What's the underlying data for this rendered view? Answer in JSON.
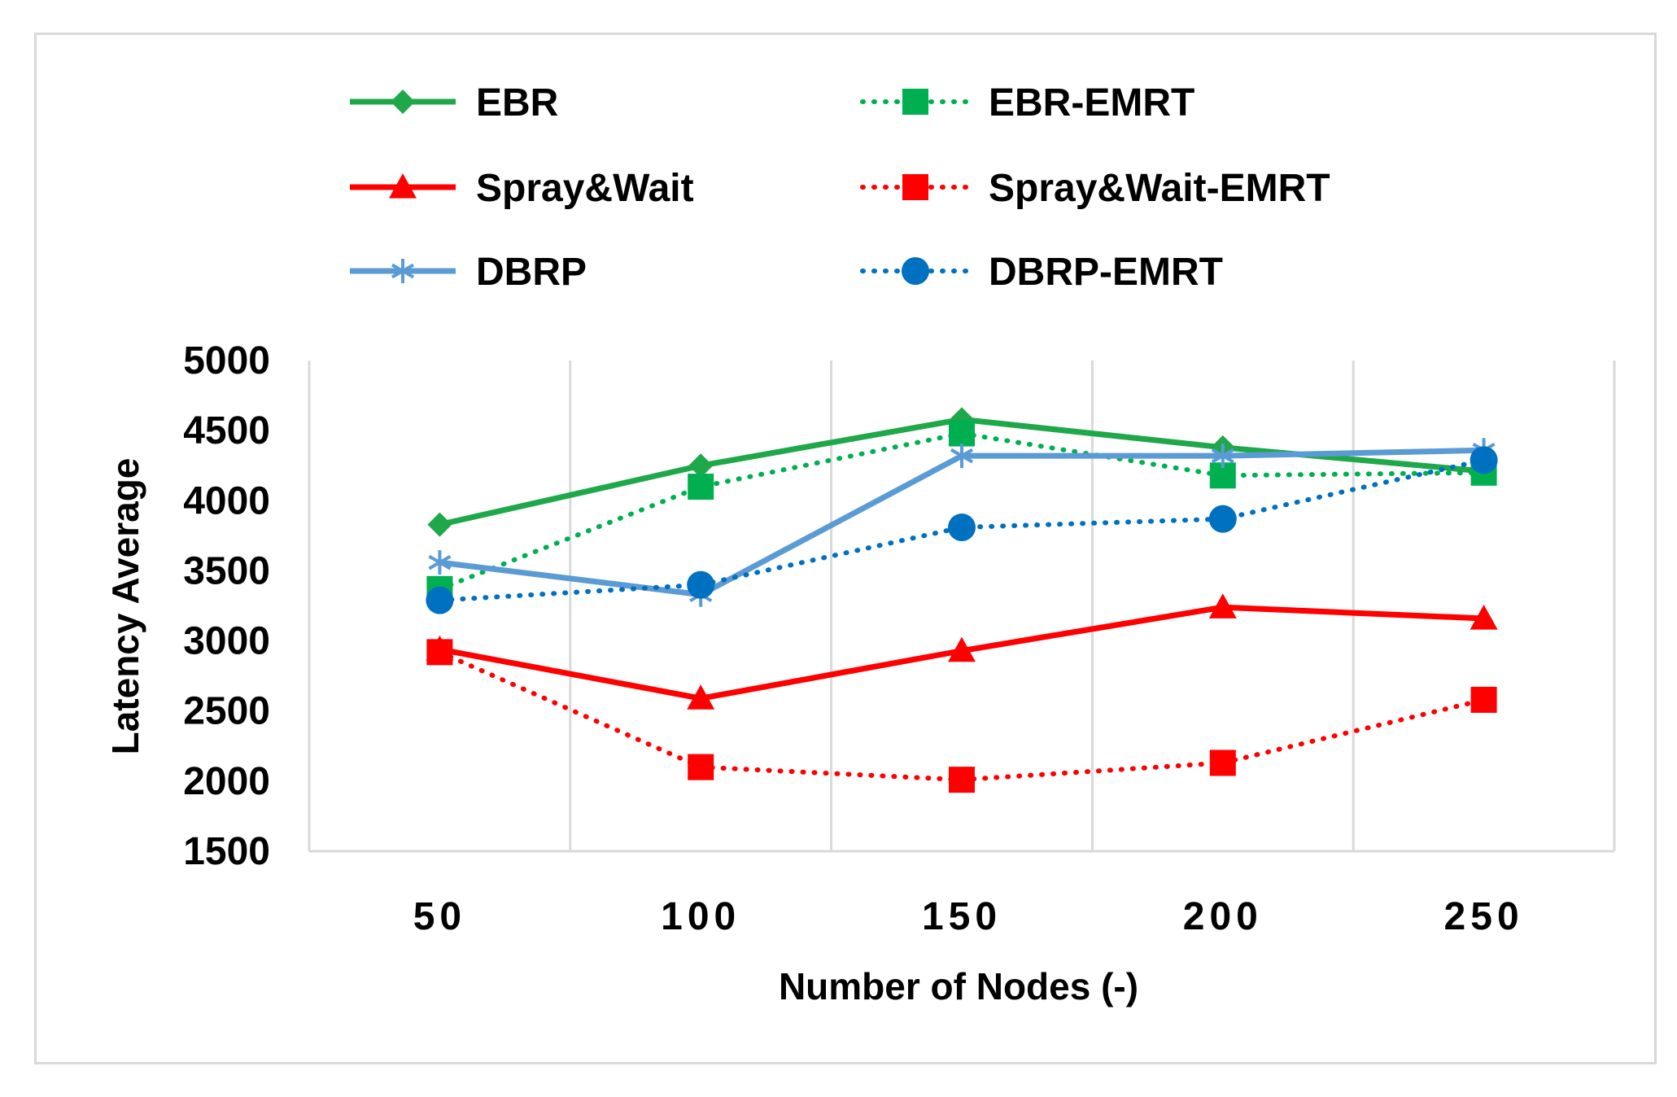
{
  "chart_data": {
    "type": "line",
    "title": "",
    "xlabel": "Number of Nodes (-)",
    "ylabel": "Latency Average",
    "categories": [
      "50",
      "100",
      "150",
      "200",
      "250"
    ],
    "ylim": [
      1500,
      5000
    ],
    "yticks": [
      "1500",
      "2000",
      "2500",
      "3000",
      "3500",
      "4000",
      "4500",
      "5000"
    ],
    "grid": "vertical",
    "legend_position": "top",
    "series": [
      {
        "name": "EBR",
        "values": [
          3830,
          4250,
          4580,
          4380,
          4210
        ],
        "color": "#1ea84a",
        "dash": "solid",
        "marker": "diamond"
      },
      {
        "name": "EBR-EMRT",
        "values": [
          3370,
          4100,
          4480,
          4180,
          4200
        ],
        "color": "#00b050",
        "dash": "dotted",
        "marker": "square"
      },
      {
        "name": "Spray&Wait",
        "values": [
          2940,
          2590,
          2930,
          3240,
          3160
        ],
        "color": "#ff0000",
        "dash": "solid",
        "marker": "triangle"
      },
      {
        "name": "Spray&Wait-EMRT",
        "values": [
          2920,
          2100,
          2010,
          2130,
          2580
        ],
        "color": "#ff0000",
        "dash": "dotted",
        "marker": "square"
      },
      {
        "name": "DBRP",
        "values": [
          3560,
          3330,
          4320,
          4320,
          4360
        ],
        "color": "#5b9bd5",
        "dash": "solid",
        "marker": "asterisk"
      },
      {
        "name": "DBRP-EMRT",
        "values": [
          3290,
          3400,
          3810,
          3870,
          4290
        ],
        "color": "#0070c0",
        "dash": "dotted",
        "marker": "circle"
      }
    ]
  }
}
